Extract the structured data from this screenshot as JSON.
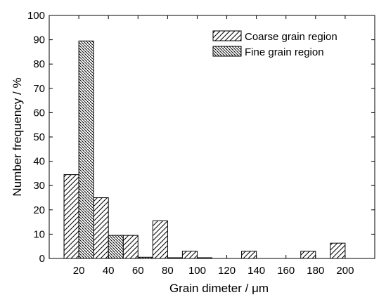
{
  "chart_data": {
    "type": "bar",
    "title": "",
    "xlabel": "Grain dimeter / μm",
    "ylabel": "Number frequency / %",
    "xlim": [
      0,
      220
    ],
    "ylim": [
      0,
      100
    ],
    "x_ticks": [
      20,
      40,
      60,
      80,
      100,
      120,
      140,
      160,
      180,
      200
    ],
    "y_ticks": [
      0,
      10,
      20,
      30,
      40,
      50,
      60,
      70,
      80,
      90,
      100
    ],
    "bin_width": 10,
    "grid": false,
    "legend_position": "top-right",
    "series": [
      {
        "name": "Coarse grain region",
        "pattern": "hatch-forward",
        "bins": [
          {
            "x_start": 10,
            "value": 34.5
          },
          {
            "x_start": 30,
            "value": 25
          },
          {
            "x_start": 50,
            "value": 9.5
          },
          {
            "x_start": 70,
            "value": 15.5
          },
          {
            "x_start": 90,
            "value": 3
          },
          {
            "x_start": 130,
            "value": 3
          },
          {
            "x_start": 170,
            "value": 3
          },
          {
            "x_start": 190,
            "value": 6.3
          }
        ]
      },
      {
        "name": "Fine grain region",
        "pattern": "hatch-backward",
        "bins": [
          {
            "x_start": 20,
            "value": 89.5
          },
          {
            "x_start": 40,
            "value": 9.5
          },
          {
            "x_start": 60,
            "value": 0.5
          },
          {
            "x_start": 80,
            "value": 0.3
          },
          {
            "x_start": 100,
            "value": 0.3
          }
        ]
      }
    ],
    "colors": {
      "stroke": "#000000",
      "background": "#ffffff"
    }
  }
}
